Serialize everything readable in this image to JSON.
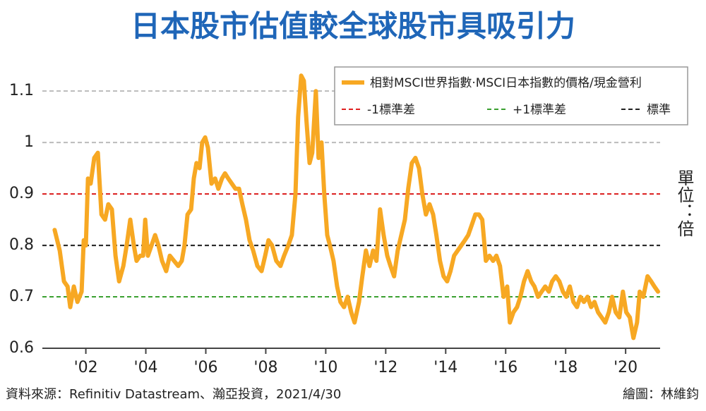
{
  "chart_data": {
    "type": "line",
    "title": "日本股市估值較全球股市具吸引力",
    "unit_label": "單位：倍",
    "source": "資料來源：Refinitiv Datastream、瀚亞投資，2021/4/30",
    "credit": "繪圖：林維鈞",
    "x": [
      2000.96,
      2001.13,
      2001.27,
      2001.39,
      2001.48,
      2001.6,
      2001.72,
      2001.86,
      2001.93,
      2002.0,
      2002.07,
      2002.16,
      2002.28,
      2002.4,
      2002.52,
      2002.64,
      2002.75,
      2002.87,
      2002.99,
      2003.11,
      2003.25,
      2003.36,
      2003.48,
      2003.6,
      2003.69,
      2003.81,
      2003.91,
      2003.98,
      2004.07,
      2004.19,
      2004.31,
      2004.42,
      2004.54,
      2004.68,
      2004.8,
      2004.94,
      2005.08,
      2005.2,
      2005.29,
      2005.39,
      2005.51,
      2005.6,
      2005.69,
      2005.79,
      2005.88,
      2005.98,
      2006.07,
      2006.19,
      2006.31,
      2006.42,
      2006.54,
      2006.64,
      2006.75,
      2006.87,
      2006.99,
      2007.11,
      2007.22,
      2007.34,
      2007.46,
      2007.58,
      2007.72,
      2007.86,
      2007.98,
      2008.09,
      2008.21,
      2008.35,
      2008.49,
      2008.61,
      2008.75,
      2008.87,
      2008.99,
      2009.08,
      2009.18,
      2009.27,
      2009.36,
      2009.46,
      2009.55,
      2009.67,
      2009.76,
      2009.86,
      2009.95,
      2010.05,
      2010.14,
      2010.26,
      2010.38,
      2010.49,
      2010.61,
      2010.73,
      2010.85,
      2010.96,
      2011.11,
      2011.22,
      2011.34,
      2011.46,
      2011.58,
      2011.69,
      2011.81,
      2011.93,
      2012.05,
      2012.16,
      2012.28,
      2012.4,
      2012.52,
      2012.64,
      2012.75,
      2012.87,
      2012.99,
      2013.11,
      2013.22,
      2013.34,
      2013.46,
      2013.58,
      2013.69,
      2013.81,
      2013.93,
      2014.05,
      2014.16,
      2014.28,
      2014.4,
      2014.52,
      2014.64,
      2014.75,
      2014.87,
      2014.99,
      2015.11,
      2015.22,
      2015.34,
      2015.46,
      2015.58,
      2015.69,
      2015.81,
      2015.93,
      2016.05,
      2016.14,
      2016.26,
      2016.38,
      2016.49,
      2016.61,
      2016.73,
      2016.85,
      2016.96,
      2017.08,
      2017.2,
      2017.32,
      2017.44,
      2017.55,
      2017.67,
      2017.79,
      2017.91,
      2018.02,
      2018.14,
      2018.26,
      2018.38,
      2018.49,
      2018.61,
      2018.73,
      2018.85,
      2018.96,
      2019.08,
      2019.2,
      2019.32,
      2019.44,
      2019.55,
      2019.67,
      2019.79,
      2019.91,
      2020.02,
      2020.14,
      2020.26,
      2020.38,
      2020.47,
      2020.59,
      2020.73,
      2020.85,
      2020.96,
      2021.08
    ],
    "series": [
      {
        "name": "相對MSCI世界指數·MSCI日本指數的價格/現金營利",
        "color": "#f7a823",
        "values": [
          0.83,
          0.79,
          0.73,
          0.72,
          0.68,
          0.72,
          0.69,
          0.71,
          0.81,
          0.8,
          0.93,
          0.92,
          0.97,
          0.98,
          0.86,
          0.85,
          0.88,
          0.87,
          0.78,
          0.73,
          0.76,
          0.8,
          0.85,
          0.8,
          0.77,
          0.78,
          0.78,
          0.85,
          0.78,
          0.8,
          0.82,
          0.8,
          0.77,
          0.75,
          0.78,
          0.77,
          0.76,
          0.77,
          0.8,
          0.86,
          0.87,
          0.93,
          0.96,
          0.95,
          1.0,
          1.01,
          0.99,
          0.92,
          0.93,
          0.91,
          0.93,
          0.94,
          0.93,
          0.92,
          0.91,
          0.91,
          0.88,
          0.85,
          0.81,
          0.79,
          0.76,
          0.75,
          0.78,
          0.81,
          0.8,
          0.77,
          0.76,
          0.78,
          0.8,
          0.82,
          0.9,
          1.05,
          1.13,
          1.12,
          1.04,
          0.96,
          0.98,
          1.1,
          0.97,
          1.0,
          0.9,
          0.82,
          0.8,
          0.77,
          0.72,
          0.69,
          0.68,
          0.7,
          0.67,
          0.65,
          0.69,
          0.74,
          0.79,
          0.76,
          0.79,
          0.77,
          0.87,
          0.82,
          0.78,
          0.76,
          0.74,
          0.79,
          0.82,
          0.85,
          0.91,
          0.96,
          0.97,
          0.95,
          0.9,
          0.86,
          0.88,
          0.86,
          0.82,
          0.77,
          0.74,
          0.73,
          0.75,
          0.78,
          0.79,
          0.8,
          0.81,
          0.82,
          0.84,
          0.86,
          0.86,
          0.85,
          0.77,
          0.78,
          0.77,
          0.78,
          0.76,
          0.7,
          0.72,
          0.65,
          0.67,
          0.68,
          0.7,
          0.73,
          0.75,
          0.73,
          0.72,
          0.7,
          0.71,
          0.72,
          0.71,
          0.73,
          0.74,
          0.73,
          0.71,
          0.7,
          0.72,
          0.69,
          0.68,
          0.7,
          0.69,
          0.7,
          0.68,
          0.69,
          0.67,
          0.66,
          0.65,
          0.67,
          0.7,
          0.67,
          0.66,
          0.71,
          0.67,
          0.66,
          0.62,
          0.65,
          0.71,
          0.7,
          0.74,
          0.73,
          0.72,
          0.71
        ]
      }
    ],
    "reference_lines": [
      {
        "name": "-1標準差",
        "value": 0.9,
        "color": "#e02020"
      },
      {
        "name": "+1標準差",
        "value": 0.7,
        "color": "#3aa030"
      },
      {
        "name": "標準",
        "value": 0.8,
        "color": "#222222"
      }
    ],
    "xlim": [
      2000.55,
      2021.15
    ],
    "xticks": [
      {
        "value": 2002,
        "label": "'02"
      },
      {
        "value": 2004,
        "label": "'04"
      },
      {
        "value": 2006,
        "label": "'06"
      },
      {
        "value": 2008,
        "label": "'08"
      },
      {
        "value": 2010,
        "label": "'10"
      },
      {
        "value": 2012,
        "label": "'12"
      },
      {
        "value": 2014,
        "label": "'14"
      },
      {
        "value": 2016,
        "label": "'16"
      },
      {
        "value": 2018,
        "label": "'18"
      },
      {
        "value": 2020,
        "label": "'20"
      }
    ],
    "ylim": [
      0.6,
      1.14
    ],
    "yticks": [
      0.6,
      0.7,
      0.8,
      0.9,
      1.0,
      1.1
    ],
    "grid": true
  }
}
